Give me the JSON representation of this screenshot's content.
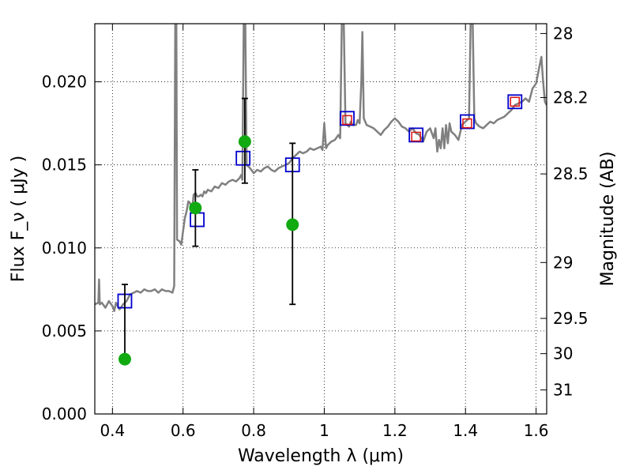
{
  "chart_data": {
    "type": "line",
    "xlabel": "Wavelength  λ (μm)",
    "ylabel": "Flux  F_ν  ( μJy )",
    "ylabel_right": "Magnitude (AB)",
    "xlim": [
      0.35,
      1.63
    ],
    "ylim": [
      0.0,
      0.0235
    ],
    "grid": true,
    "x_ticks": [
      0.4,
      0.6,
      0.8,
      1.0,
      1.2,
      1.4,
      1.6
    ],
    "x_tick_labels": [
      "0.4",
      "0.6",
      "0.8",
      "1",
      "1.2",
      "1.4",
      "1.6"
    ],
    "y_ticks": [
      0.0,
      0.005,
      0.01,
      0.015,
      0.02
    ],
    "y_tick_labels": [
      "0.000",
      "0.005",
      "0.010",
      "0.015",
      "0.020"
    ],
    "right_ticks": [
      {
        "label": "28",
        "mag": 28.0
      },
      {
        "label": "28.2",
        "mag": 28.2
      },
      {
        "label": "28.5",
        "mag": 28.5
      },
      {
        "label": "29",
        "mag": 29.0
      },
      {
        "label": "29.5",
        "mag": 29.5
      },
      {
        "label": "30",
        "mag": 30.0
      },
      {
        "label": "31",
        "mag": 31.0
      }
    ],
    "colors": {
      "model": "#808080",
      "observed": "#11aa11",
      "errorbar": "#000000",
      "model_box": "#0000cc",
      "model_box_inner": "#dd1111",
      "grid": "#000000"
    },
    "series": [
      {
        "kind": "line",
        "points": [
          [
            0.35,
            0.0066
          ],
          [
            0.36,
            0.0067
          ],
          [
            0.362,
            0.0081
          ],
          [
            0.364,
            0.0066
          ],
          [
            0.37,
            0.0067
          ],
          [
            0.38,
            0.0064
          ],
          [
            0.39,
            0.0068
          ],
          [
            0.4,
            0.0065
          ],
          [
            0.405,
            0.0062
          ],
          [
            0.41,
            0.0067
          ],
          [
            0.42,
            0.0063
          ],
          [
            0.43,
            0.0066
          ],
          [
            0.44,
            0.0068
          ],
          [
            0.45,
            0.0072
          ],
          [
            0.46,
            0.0073
          ],
          [
            0.47,
            0.0074
          ],
          [
            0.48,
            0.0073
          ],
          [
            0.49,
            0.0075
          ],
          [
            0.5,
            0.0074
          ],
          [
            0.51,
            0.0074
          ],
          [
            0.52,
            0.0075
          ],
          [
            0.53,
            0.0073
          ],
          [
            0.54,
            0.0075
          ],
          [
            0.55,
            0.0074
          ],
          [
            0.56,
            0.0074
          ],
          [
            0.57,
            0.0073
          ],
          [
            0.575,
            0.0077
          ],
          [
            0.578,
            0.024
          ],
          [
            0.581,
            0.024
          ],
          [
            0.583,
            0.0105
          ],
          [
            0.59,
            0.0104
          ],
          [
            0.595,
            0.0102
          ],
          [
            0.6,
            0.011
          ],
          [
            0.605,
            0.0118
          ],
          [
            0.61,
            0.0122
          ],
          [
            0.615,
            0.0128
          ],
          [
            0.62,
            0.0127
          ],
          [
            0.625,
            0.0121
          ],
          [
            0.63,
            0.0132
          ],
          [
            0.635,
            0.0133
          ],
          [
            0.64,
            0.0131
          ],
          [
            0.645,
            0.0131
          ],
          [
            0.65,
            0.0132
          ],
          [
            0.655,
            0.0131
          ],
          [
            0.66,
            0.0134
          ],
          [
            0.665,
            0.0133
          ],
          [
            0.67,
            0.0135
          ],
          [
            0.68,
            0.0134
          ],
          [
            0.69,
            0.0137
          ],
          [
            0.7,
            0.0136
          ],
          [
            0.71,
            0.0139
          ],
          [
            0.72,
            0.0138
          ],
          [
            0.73,
            0.014
          ],
          [
            0.74,
            0.0141
          ],
          [
            0.75,
            0.014
          ],
          [
            0.76,
            0.0142
          ],
          [
            0.765,
            0.0144
          ],
          [
            0.768,
            0.0141
          ],
          [
            0.772,
            0.024
          ],
          [
            0.776,
            0.024
          ],
          [
            0.78,
            0.015
          ],
          [
            0.79,
            0.0148
          ],
          [
            0.8,
            0.0145
          ],
          [
            0.81,
            0.0147
          ],
          [
            0.82,
            0.0146
          ],
          [
            0.83,
            0.0148
          ],
          [
            0.84,
            0.0149
          ],
          [
            0.85,
            0.0147
          ],
          [
            0.86,
            0.0146
          ],
          [
            0.87,
            0.0148
          ],
          [
            0.88,
            0.0149
          ],
          [
            0.89,
            0.015
          ],
          [
            0.9,
            0.0151
          ],
          [
            0.91,
            0.0154
          ],
          [
            0.92,
            0.0156
          ],
          [
            0.93,
            0.0158
          ],
          [
            0.94,
            0.0157
          ],
          [
            0.95,
            0.0158
          ],
          [
            0.96,
            0.016
          ],
          [
            0.97,
            0.0159
          ],
          [
            0.98,
            0.016
          ],
          [
            0.99,
            0.0161
          ],
          [
            0.995,
            0.0159
          ],
          [
            1.0,
            0.0175
          ],
          [
            1.005,
            0.016
          ],
          [
            1.01,
            0.0162
          ],
          [
            1.02,
            0.0164
          ],
          [
            1.03,
            0.0165
          ],
          [
            1.04,
            0.0168
          ],
          [
            1.045,
            0.0166
          ],
          [
            1.05,
            0.024
          ],
          [
            1.055,
            0.024
          ],
          [
            1.06,
            0.0175
          ],
          [
            1.07,
            0.0173
          ],
          [
            1.075,
            0.0176
          ],
          [
            1.08,
            0.0174
          ],
          [
            1.09,
            0.0174
          ],
          [
            1.095,
            0.0177
          ],
          [
            1.1,
            0.0175
          ],
          [
            1.105,
            0.02
          ],
          [
            1.108,
            0.023
          ],
          [
            1.112,
            0.0178
          ],
          [
            1.12,
            0.0174
          ],
          [
            1.13,
            0.0173
          ],
          [
            1.14,
            0.0172
          ],
          [
            1.15,
            0.017
          ],
          [
            1.16,
            0.0168
          ],
          [
            1.17,
            0.0171
          ],
          [
            1.18,
            0.0173
          ],
          [
            1.19,
            0.0176
          ],
          [
            1.2,
            0.0178
          ],
          [
            1.21,
            0.0176
          ],
          [
            1.22,
            0.0173
          ],
          [
            1.23,
            0.0172
          ],
          [
            1.24,
            0.017
          ],
          [
            1.25,
            0.0172
          ],
          [
            1.26,
            0.0169
          ],
          [
            1.27,
            0.0168
          ],
          [
            1.28,
            0.0164
          ],
          [
            1.29,
            0.017
          ],
          [
            1.3,
            0.0172
          ],
          [
            1.31,
            0.0166
          ],
          [
            1.315,
            0.0172
          ],
          [
            1.32,
            0.0158
          ],
          [
            1.325,
            0.0165
          ],
          [
            1.33,
            0.016
          ],
          [
            1.335,
            0.0172
          ],
          [
            1.34,
            0.016
          ],
          [
            1.345,
            0.0174
          ],
          [
            1.35,
            0.0163
          ],
          [
            1.355,
            0.0175
          ],
          [
            1.36,
            0.017
          ],
          [
            1.37,
            0.0168
          ],
          [
            1.38,
            0.0165
          ],
          [
            1.39,
            0.0174
          ],
          [
            1.4,
            0.0176
          ],
          [
            1.41,
            0.0178
          ],
          [
            1.415,
            0.024
          ],
          [
            1.42,
            0.024
          ],
          [
            1.425,
            0.0178
          ],
          [
            1.43,
            0.0175
          ],
          [
            1.44,
            0.0173
          ],
          [
            1.45,
            0.0172
          ],
          [
            1.46,
            0.0174
          ],
          [
            1.47,
            0.0176
          ],
          [
            1.48,
            0.0175
          ],
          [
            1.49,
            0.0177
          ],
          [
            1.5,
            0.0178
          ],
          [
            1.51,
            0.0179
          ],
          [
            1.52,
            0.0181
          ],
          [
            1.53,
            0.0183
          ],
          [
            1.54,
            0.0186
          ],
          [
            1.55,
            0.0187
          ],
          [
            1.56,
            0.0188
          ],
          [
            1.57,
            0.019
          ],
          [
            1.58,
            0.0188
          ],
          [
            1.59,
            0.0196
          ],
          [
            1.6,
            0.0199
          ],
          [
            1.61,
            0.021
          ],
          [
            1.615,
            0.0215
          ],
          [
            1.62,
            0.02
          ],
          [
            1.625,
            0.0188
          ],
          [
            1.63,
            0.0186
          ]
        ]
      },
      {
        "kind": "points_with_errorbars",
        "points": [
          {
            "x": 0.435,
            "y": 0.0033,
            "err_low": 0.0033,
            "err_high": 0.0078
          },
          {
            "x": 0.635,
            "y": 0.0124,
            "err_low": 0.0101,
            "err_high": 0.0147
          },
          {
            "x": 0.775,
            "y": 0.0164,
            "err_low": 0.0139,
            "err_high": 0.019
          },
          {
            "x": 0.91,
            "y": 0.0114,
            "err_low": 0.0066,
            "err_high": 0.0163
          }
        ]
      },
      {
        "kind": "model_photometry",
        "points": [
          {
            "x": 0.435,
            "y": 0.0068
          },
          {
            "x": 0.64,
            "y": 0.0117
          },
          {
            "x": 0.77,
            "y": 0.0154
          },
          {
            "x": 0.91,
            "y": 0.015
          },
          {
            "x": 1.065,
            "y": 0.0178
          },
          {
            "x": 1.26,
            "y": 0.0168
          },
          {
            "x": 1.405,
            "y": 0.0176
          },
          {
            "x": 1.54,
            "y": 0.0188
          }
        ],
        "inner_points": [
          {
            "x": 1.065,
            "y": 0.0177
          },
          {
            "x": 1.26,
            "y": 0.0167
          },
          {
            "x": 1.405,
            "y": 0.0175
          },
          {
            "x": 1.54,
            "y": 0.0188
          }
        ]
      }
    ]
  }
}
